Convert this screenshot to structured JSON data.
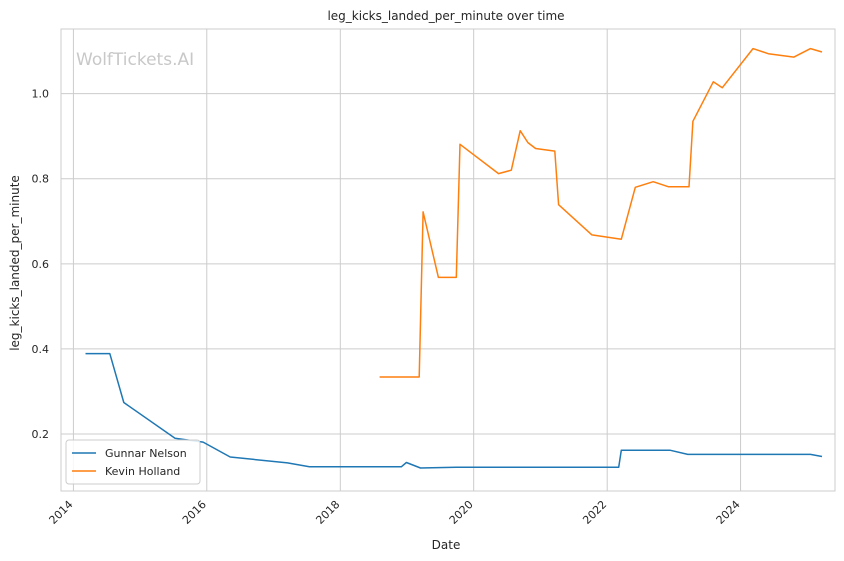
{
  "chart_data": {
    "type": "line",
    "title": "leg_kicks_landed_per_minute over time",
    "xlabel": "Date",
    "ylabel": "leg_kicks_landed_per_minute",
    "watermark": "WolfTickets.AI",
    "x_ticks": [
      "2014",
      "2016",
      "2018",
      "2020",
      "2022",
      "2024"
    ],
    "y_ticks": [
      "0.2",
      "0.4",
      "0.6",
      "0.8",
      "1.0"
    ],
    "xlim": [
      "2013-10-25",
      "2025-06-01"
    ],
    "ylim": [
      0.066,
      1.152
    ],
    "grid": true,
    "legend_position": "lower-left",
    "series": [
      {
        "name": "Gunnar Nelson",
        "color": "#1f77b4",
        "points": [
          [
            "2014-03-08",
            0.389
          ],
          [
            "2014-07-19",
            0.389
          ],
          [
            "2014-10-04",
            0.274
          ],
          [
            "2015-07-11",
            0.19
          ],
          [
            "2015-12-12",
            0.181
          ],
          [
            "2016-05-08",
            0.146
          ],
          [
            "2017-03-18",
            0.132
          ],
          [
            "2017-07-16",
            0.123
          ],
          [
            "2018-12-01",
            0.123
          ],
          [
            "2018-12-29",
            0.133
          ],
          [
            "2019-03-16",
            0.12
          ],
          [
            "2019-09-28",
            0.122
          ],
          [
            "2022-03-05",
            0.122
          ],
          [
            "2022-03-19",
            0.162
          ],
          [
            "2022-12-10",
            0.162
          ],
          [
            "2023-03-18",
            0.152
          ],
          [
            "2025-01-18",
            0.152
          ],
          [
            "2025-03-22",
            0.147
          ]
        ]
      },
      {
        "name": "Kevin Holland",
        "color": "#ff7f0e",
        "points": [
          [
            "2018-08-04",
            0.334
          ],
          [
            "2019-03-09",
            0.334
          ],
          [
            "2019-03-30",
            0.722
          ],
          [
            "2019-06-22",
            0.568
          ],
          [
            "2019-09-28",
            0.568
          ],
          [
            "2019-10-18",
            0.881
          ],
          [
            "2020-05-16",
            0.812
          ],
          [
            "2020-07-25",
            0.82
          ],
          [
            "2020-09-12",
            0.913
          ],
          [
            "2020-10-24",
            0.885
          ],
          [
            "2020-12-05",
            0.871
          ],
          [
            "2021-03-20",
            0.865
          ],
          [
            "2021-04-10",
            0.739
          ],
          [
            "2021-10-09",
            0.668
          ],
          [
            "2022-03-19",
            0.658
          ],
          [
            "2022-06-04",
            0.78
          ],
          [
            "2022-09-10",
            0.793
          ],
          [
            "2022-12-03",
            0.781
          ],
          [
            "2023-03-25",
            0.781
          ],
          [
            "2023-04-15",
            0.935
          ],
          [
            "2023-08-05",
            1.028
          ],
          [
            "2023-09-23",
            1.014
          ],
          [
            "2024-03-09",
            1.106
          ],
          [
            "2024-06-01",
            1.094
          ],
          [
            "2024-10-19",
            1.086
          ],
          [
            "2025-01-18",
            1.106
          ],
          [
            "2025-03-22",
            1.098
          ]
        ]
      }
    ]
  }
}
